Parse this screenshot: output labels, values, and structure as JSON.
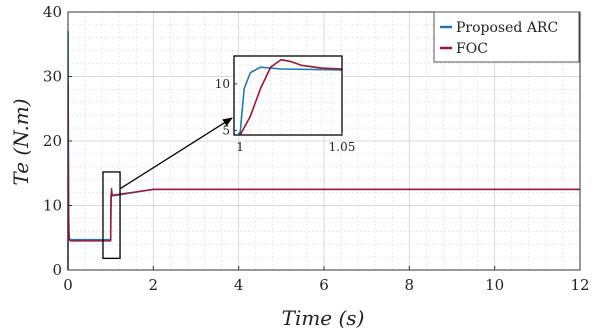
{
  "chart_data": {
    "type": "line",
    "xlabel": "Time (s)",
    "ylabel": "Te (N.m)",
    "xlim": [
      0,
      12
    ],
    "ylim": [
      0,
      40
    ],
    "xticks": [
      0,
      2,
      4,
      6,
      8,
      10,
      12
    ],
    "yticks": [
      0,
      10,
      20,
      30,
      40
    ],
    "grid": "on (minor dashed)",
    "legend_position": "top-right",
    "legend": [
      "Proposed ARC",
      "FOC"
    ],
    "series": [
      {
        "name": "Proposed ARC",
        "color": "#1f77b4",
        "x": [
          0,
          0.003,
          0.006,
          0.012,
          0.02,
          0.03,
          0.05,
          0.1,
          0.999,
          1.0,
          1.002,
          1.005,
          1.01,
          1.02,
          1.05,
          2,
          4,
          6,
          8,
          10,
          12
        ],
        "y": [
          0,
          37,
          25,
          12,
          6,
          4.8,
          4.7,
          4.7,
          4.7,
          4.7,
          9.5,
          11.2,
          11.8,
          11.6,
          11.5,
          12.5,
          12.5,
          12.5,
          12.5,
          12.5,
          12.5
        ]
      },
      {
        "name": "FOC",
        "color": "#a2142f",
        "x": [
          0,
          0.003,
          0.008,
          0.015,
          0.025,
          0.04,
          0.06,
          0.1,
          0.999,
          1.0,
          1.005,
          1.01,
          1.015,
          1.02,
          1.025,
          1.03,
          1.04,
          1.05,
          2,
          4,
          6,
          8,
          10,
          12
        ],
        "y": [
          0,
          29,
          18,
          9,
          5.5,
          4.6,
          4.5,
          4.5,
          4.5,
          4.5,
          6.5,
          9.5,
          11.8,
          12.6,
          12.4,
          12.0,
          11.7,
          11.6,
          12.5,
          12.5,
          12.5,
          12.5,
          12.5,
          12.5
        ]
      }
    ],
    "inset": {
      "xlim": [
        0.997,
        1.05
      ],
      "ylim": [
        4.5,
        13
      ],
      "xticks": [
        1,
        1.05
      ],
      "yticks": [
        5,
        10
      ]
    }
  }
}
